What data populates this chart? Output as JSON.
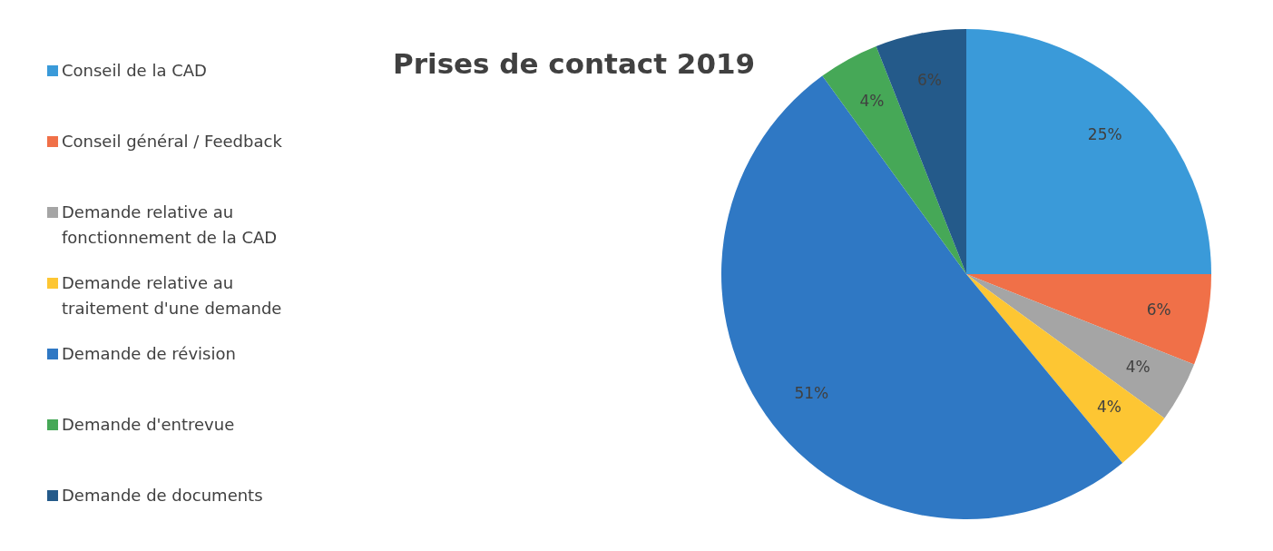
{
  "chart_data": {
    "type": "pie",
    "title": "Prises de contact 2019",
    "legend": "left",
    "categories": [
      "Conseil de la CAD",
      "Conseil général / Feedback",
      "Demande relative au fonctionnement de la CAD",
      "Demande relative au traitement d'une demande",
      "Demande de révision",
      "Demande d'entrevue",
      "Demande de documents"
    ],
    "values": [
      25,
      6,
      4,
      4,
      51,
      4,
      6
    ],
    "colors": [
      "#3a9ad9",
      "#f07048",
      "#a5a5a5",
      "#fdc633",
      "#2f78c4",
      "#46a857",
      "#245a8a"
    ],
    "value_labels": [
      "25%",
      "6%",
      "4%",
      "4%",
      "51%",
      "4%",
      "6%"
    ]
  }
}
